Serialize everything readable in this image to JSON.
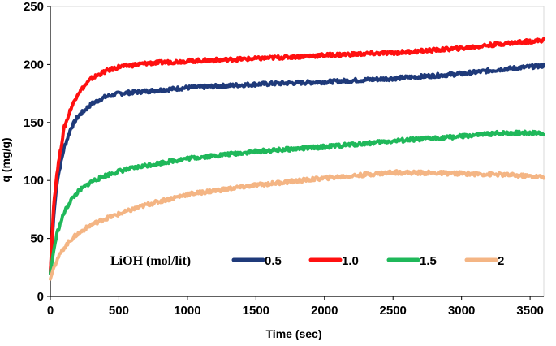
{
  "chart_data": {
    "type": "line",
    "title": "",
    "xlabel": "Time (sec)",
    "ylabel": "q (mg/g)",
    "xlim": [
      0,
      3600
    ],
    "ylim": [
      0,
      250
    ],
    "xticks": [
      0,
      500,
      1000,
      1500,
      2000,
      2500,
      3000,
      3500
    ],
    "yticks": [
      0,
      50,
      100,
      150,
      200,
      250
    ],
    "xtick_labels": [
      "0",
      "500",
      "1000",
      "1500",
      "2000",
      "2500",
      "3000",
      "3500"
    ],
    "ytick_labels": [
      "0",
      "50",
      "100",
      "150",
      "200",
      "250"
    ],
    "grid": false,
    "legend": {
      "title": "LiOH (mol/lit)",
      "placement": "bottom-inside"
    },
    "series": [
      {
        "name": "0.5",
        "color": "#1f3a7a",
        "x": [
          0,
          25,
          50,
          100,
          150,
          200,
          300,
          400,
          500,
          700,
          1000,
          1500,
          2000,
          2500,
          3000,
          3300,
          3600
        ],
        "y": [
          20,
          70,
          100,
          128,
          145,
          155,
          166,
          172,
          175,
          177,
          180,
          183,
          185,
          188,
          192,
          196,
          199
        ]
      },
      {
        "name": "1.0",
        "color": "#ff1010",
        "x": [
          0,
          25,
          50,
          100,
          150,
          200,
          300,
          400,
          500,
          700,
          1000,
          1500,
          2000,
          2500,
          3000,
          3300,
          3600
        ],
        "y": [
          20,
          80,
          108,
          145,
          162,
          175,
          188,
          194,
          198,
          201,
          203,
          205,
          208,
          210,
          214,
          218,
          221
        ]
      },
      {
        "name": "1.5",
        "color": "#1fb85a",
        "x": [
          0,
          25,
          50,
          100,
          150,
          200,
          300,
          400,
          500,
          700,
          1000,
          1500,
          2000,
          2500,
          3000,
          3300,
          3600
        ],
        "y": [
          20,
          40,
          55,
          72,
          83,
          90,
          99,
          104,
          108,
          113,
          119,
          125,
          129,
          134,
          138,
          141,
          141
        ]
      },
      {
        "name": "2",
        "color": "#f4b584",
        "x": [
          0,
          25,
          50,
          100,
          150,
          200,
          300,
          400,
          500,
          700,
          1000,
          1500,
          2000,
          2500,
          3000,
          3300,
          3600
        ],
        "y": [
          15,
          25,
          32,
          42,
          49,
          54,
          62,
          67,
          71,
          79,
          88,
          96,
          102,
          107,
          106,
          105,
          103
        ]
      }
    ]
  }
}
